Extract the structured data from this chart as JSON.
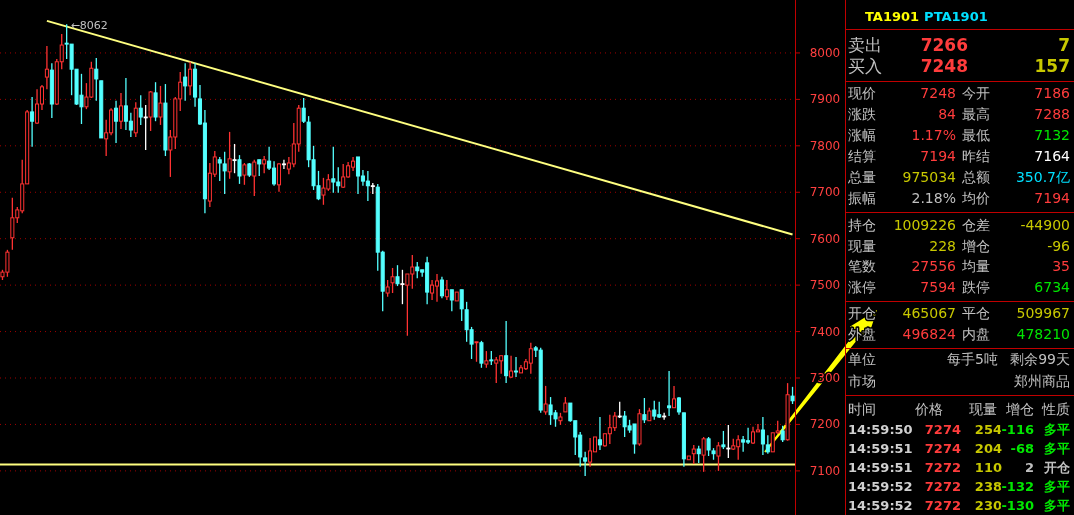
{
  "chart_data": [
    {
      "type": "candlestick",
      "ylim": [
        7005,
        8114
      ],
      "yticks": [
        7100,
        7200,
        7300,
        7400,
        7500,
        7600,
        7700,
        7800,
        7900,
        8000
      ],
      "grid": "y",
      "tick_labels": "y",
      "categories": [
        null,
        null,
        null,
        null,
        null,
        null,
        null,
        null,
        null,
        null,
        null,
        null,
        null,
        null,
        null,
        null,
        null,
        null,
        null,
        null,
        null,
        null,
        null,
        null,
        null,
        null,
        null,
        null,
        null,
        null,
        null,
        null,
        null,
        null,
        null,
        null,
        null,
        null,
        null,
        null,
        null,
        null,
        null,
        null,
        null,
        null,
        null,
        null,
        null,
        null,
        null,
        null,
        null,
        null,
        null,
        null,
        null,
        null,
        null,
        null,
        null,
        null,
        null,
        null,
        null,
        null,
        null,
        null,
        null,
        null,
        null,
        null,
        null,
        null,
        null,
        null,
        null,
        null,
        null,
        null,
        null,
        null,
        null,
        null,
        null,
        null,
        null,
        null,
        null,
        null,
        null,
        null,
        null,
        null,
        null,
        null,
        null,
        null,
        null,
        null,
        null,
        null,
        null,
        null,
        null,
        null,
        null,
        null,
        null,
        null,
        null,
        null,
        null,
        null,
        null,
        null,
        null,
        null,
        null,
        null,
        null,
        null,
        null,
        null,
        null,
        null,
        null,
        null,
        null,
        null,
        null,
        null,
        null,
        null,
        null,
        null,
        null,
        null,
        null,
        null,
        null,
        null,
        null,
        null,
        null,
        null,
        null,
        null,
        null,
        null,
        null,
        null,
        null,
        null,
        null,
        null,
        null,
        null,
        null,
        null,
        null
      ],
      "ohlc": [
        [
          7518,
          7533,
          7511,
          7528
        ],
        [
          7528,
          7576,
          7518,
          7571
        ],
        [
          7602,
          7688,
          7576,
          7645
        ],
        [
          7645,
          7668,
          7634,
          7662
        ],
        [
          7660,
          7770,
          7655,
          7718
        ],
        [
          7718,
          7877,
          7718,
          7873
        ],
        [
          7873,
          7905,
          7798,
          7853
        ],
        [
          7849,
          7922,
          7847,
          7890
        ],
        [
          7890,
          7931,
          7877,
          7927
        ],
        [
          7948,
          8015,
          7922,
          7965
        ],
        [
          7963,
          7978,
          7860,
          7890
        ],
        [
          7890,
          7987,
          7888,
          7981
        ],
        [
          7981,
          8041,
          7965,
          8017
        ],
        [
          8021,
          8062,
          7987,
          8019
        ],
        [
          8019,
          8019,
          7909,
          7965
        ],
        [
          7965,
          7965,
          7888,
          7890
        ],
        [
          7909,
          7955,
          7847,
          7884
        ],
        [
          7884,
          7935,
          7879,
          7905
        ],
        [
          7905,
          7981,
          7903,
          7967
        ],
        [
          7965,
          7989,
          7897,
          7944
        ],
        [
          7940,
          7940,
          7817,
          7817
        ],
        [
          7815,
          7856,
          7778,
          7828
        ],
        [
          7828,
          7881,
          7823,
          7877
        ],
        [
          7881,
          7897,
          7806,
          7853
        ],
        [
          7853,
          7914,
          7836,
          7886
        ],
        [
          7886,
          7946,
          7834,
          7853
        ],
        [
          7853,
          7871,
          7819,
          7834
        ],
        [
          7828,
          7894,
          7819,
          7881
        ],
        [
          7881,
          7909,
          7845,
          7862
        ],
        [
          7862,
          7888,
          7791,
          7862
        ],
        [
          7862,
          7918,
          7832,
          7916
        ],
        [
          7914,
          7937,
          7853,
          7862
        ],
        [
          7862,
          7929,
          7845,
          7892
        ],
        [
          7892,
          7933,
          7778,
          7791
        ],
        [
          7791,
          7834,
          7733,
          7819
        ],
        [
          7819,
          7905,
          7793,
          7901
        ],
        [
          7901,
          7959,
          7875,
          7937
        ],
        [
          7948,
          7978,
          7897,
          7929
        ],
        [
          7929,
          7981,
          7909,
          7965
        ],
        [
          7965,
          7978,
          7884,
          7905
        ],
        [
          7901,
          7931,
          7845,
          7847
        ],
        [
          7849,
          7877,
          7655,
          7686
        ],
        [
          7681,
          7763,
          7668,
          7741
        ],
        [
          7739,
          7789,
          7733,
          7776
        ],
        [
          7770,
          7776,
          7724,
          7763
        ],
        [
          7761,
          7787,
          7696,
          7746
        ],
        [
          7744,
          7830,
          7729,
          7772
        ],
        [
          7770,
          7804,
          7741,
          7770
        ],
        [
          7770,
          7780,
          7718,
          7735
        ],
        [
          7737,
          7763,
          7716,
          7759
        ],
        [
          7761,
          7763,
          7733,
          7737
        ],
        [
          7735,
          7770,
          7692,
          7765
        ],
        [
          7770,
          7770,
          7735,
          7761
        ],
        [
          7761,
          7778,
          7741,
          7770
        ],
        [
          7767,
          7798,
          7748,
          7752
        ],
        [
          7752,
          7767,
          7714,
          7718
        ],
        [
          7716,
          7763,
          7701,
          7761
        ],
        [
          7761,
          7770,
          7750,
          7761
        ],
        [
          7750,
          7776,
          7739,
          7763
        ],
        [
          7761,
          7849,
          7754,
          7804
        ],
        [
          7804,
          7888,
          7787,
          7881
        ],
        [
          7881,
          7903,
          7849,
          7853
        ],
        [
          7851,
          7864,
          7754,
          7770
        ],
        [
          7770,
          7800,
          7705,
          7714
        ],
        [
          7714,
          7746,
          7683,
          7686
        ],
        [
          7694,
          7731,
          7673,
          7709
        ],
        [
          7707,
          7739,
          7703,
          7727
        ],
        [
          7729,
          7798,
          7699,
          7722
        ],
        [
          7722,
          7754,
          7699,
          7714
        ],
        [
          7711,
          7761,
          7709,
          7733
        ],
        [
          7733,
          7765,
          7731,
          7757
        ],
        [
          7754,
          7776,
          7746,
          7767
        ],
        [
          7776,
          7776,
          7696,
          7735
        ],
        [
          7735,
          7748,
          7714,
          7724
        ],
        [
          7724,
          7746,
          7681,
          7714
        ],
        [
          7714,
          7720,
          7696,
          7714
        ],
        [
          7711,
          7718,
          7531,
          7571
        ],
        [
          7571,
          7574,
          7444,
          7487
        ],
        [
          7483,
          7511,
          7475,
          7496
        ],
        [
          7505,
          7537,
          7483,
          7518
        ],
        [
          7518,
          7543,
          7498,
          7503
        ],
        [
          7503,
          7533,
          7459,
          7503
        ],
        [
          7500,
          7524,
          7391,
          7524
        ],
        [
          7524,
          7565,
          7492,
          7539
        ],
        [
          7539,
          7550,
          7515,
          7531
        ],
        [
          7533,
          7533,
          7518,
          7528
        ],
        [
          7548,
          7561,
          7459,
          7485
        ],
        [
          7483,
          7511,
          7468,
          7500
        ],
        [
          7498,
          7524,
          7464,
          7509
        ],
        [
          7511,
          7518,
          7472,
          7477
        ],
        [
          7475,
          7511,
          7468,
          7490
        ],
        [
          7490,
          7490,
          7444,
          7468
        ],
        [
          7466,
          7485,
          7466,
          7485
        ],
        [
          7490,
          7490,
          7423,
          7449
        ],
        [
          7447,
          7464,
          7378,
          7404
        ],
        [
          7404,
          7410,
          7341,
          7373
        ],
        [
          7376,
          7378,
          7335,
          7378
        ],
        [
          7376,
          7380,
          7322,
          7332
        ],
        [
          7330,
          7358,
          7322,
          7337
        ],
        [
          7339,
          7358,
          7328,
          7337
        ],
        [
          7332,
          7345,
          7289,
          7339
        ],
        [
          7337,
          7348,
          7309,
          7348
        ],
        [
          7348,
          7423,
          7289,
          7305
        ],
        [
          7302,
          7348,
          7300,
          7315
        ],
        [
          7315,
          7345,
          7302,
          7313
        ],
        [
          7311,
          7328,
          7311,
          7322
        ],
        [
          7320,
          7341,
          7317,
          7335
        ],
        [
          7332,
          7376,
          7309,
          7363
        ],
        [
          7365,
          7369,
          7345,
          7360
        ],
        [
          7360,
          7365,
          7225,
          7231
        ],
        [
          7227,
          7283,
          7221,
          7244
        ],
        [
          7242,
          7259,
          7199,
          7221
        ],
        [
          7225,
          7231,
          7195,
          7212
        ],
        [
          7208,
          7225,
          7199,
          7216
        ],
        [
          7227,
          7259,
          7227,
          7246
        ],
        [
          7246,
          7246,
          7206,
          7208
        ],
        [
          7208,
          7208,
          7134,
          7173
        ],
        [
          7177,
          7184,
          7109,
          7130
        ],
        [
          7128,
          7141,
          7089,
          7121
        ],
        [
          7119,
          7171,
          7109,
          7143
        ],
        [
          7141,
          7173,
          7141,
          7173
        ],
        [
          7167,
          7216,
          7145,
          7156
        ],
        [
          7154,
          7180,
          7152,
          7180
        ],
        [
          7180,
          7221,
          7158,
          7193
        ],
        [
          7193,
          7227,
          7186,
          7218
        ],
        [
          7218,
          7249,
          7214,
          7218
        ],
        [
          7218,
          7229,
          7173,
          7195
        ],
        [
          7197,
          7210,
          7182,
          7188
        ],
        [
          7201,
          7201,
          7137,
          7158
        ],
        [
          7158,
          7233,
          7154,
          7223
        ],
        [
          7221,
          7257,
          7203,
          7210
        ],
        [
          7208,
          7236,
          7208,
          7229
        ],
        [
          7231,
          7251,
          7210,
          7218
        ],
        [
          7221,
          7249,
          7214,
          7216
        ],
        [
          7218,
          7225,
          7210,
          7218
        ],
        [
          7240,
          7315,
          7218,
          7236
        ],
        [
          7236,
          7283,
          7236,
          7255
        ],
        [
          7257,
          7259,
          7221,
          7227
        ],
        [
          7225,
          7225,
          7109,
          7126
        ],
        [
          7124,
          7132,
          7124,
          7132
        ],
        [
          7137,
          7156,
          7115,
          7147
        ],
        [
          7147,
          7154,
          7117,
          7137
        ],
        [
          7134,
          7173,
          7098,
          7169
        ],
        [
          7169,
          7173,
          7132,
          7145
        ],
        [
          7143,
          7149,
          7124,
          7137
        ],
        [
          7132,
          7162,
          7100,
          7154
        ],
        [
          7156,
          7186,
          7147,
          7152
        ],
        [
          7149,
          7199,
          7128,
          7149
        ],
        [
          7147,
          7169,
          7145,
          7154
        ],
        [
          7152,
          7177,
          7124,
          7167
        ],
        [
          7167,
          7175,
          7141,
          7162
        ],
        [
          7165,
          7193,
          7158,
          7162
        ],
        [
          7160,
          7195,
          7158,
          7184
        ],
        [
          7184,
          7201,
          7184,
          7188
        ],
        [
          7188,
          7216,
          7134,
          7158
        ],
        [
          7156,
          7177,
          7137,
          7141
        ],
        [
          7141,
          7182,
          7141,
          7182
        ],
        [
          7182,
          7208,
          7180,
          7186
        ],
        [
          7186,
          7197,
          7162,
          7167
        ],
        [
          7167,
          7289,
          7165,
          7264
        ],
        [
          7261,
          7281,
          7244,
          7251
        ]
      ],
      "series": [
        {
          "type": "line",
          "color": "#ffff80",
          "values": [
            null,
            null,
            null,
            null,
            null,
            null,
            null,
            null,
            null,
            8069,
            null,
            null,
            null,
            null,
            null,
            null,
            null,
            null,
            null,
            null,
            null,
            null,
            null,
            null,
            null,
            null,
            null,
            null,
            null,
            null,
            null,
            null,
            null,
            null,
            null,
            null,
            null,
            null,
            null,
            null,
            null,
            null,
            null,
            null,
            null,
            null,
            null,
            null,
            null,
            null,
            null,
            null,
            null,
            null,
            null,
            null,
            null,
            null,
            null,
            null,
            null,
            null,
            null,
            null,
            null,
            null,
            null,
            null,
            null,
            null,
            null,
            null,
            null,
            null,
            null,
            null,
            null,
            null,
            null,
            null,
            null,
            null,
            null,
            null,
            null,
            null,
            null,
            null,
            null,
            null,
            null,
            null,
            null,
            null,
            null,
            null,
            null,
            null,
            null,
            null,
            null,
            null,
            null,
            null,
            null,
            null,
            null,
            null,
            null,
            null,
            null,
            null,
            null,
            null,
            null,
            null,
            null,
            null,
            null,
            null,
            null,
            null,
            null,
            null,
            null,
            null,
            null,
            null,
            null,
            null,
            null,
            null,
            null,
            null,
            null,
            null,
            null,
            null,
            null,
            null,
            null,
            null,
            null,
            null,
            null,
            null,
            null,
            null,
            null,
            null,
            null,
            null,
            null,
            null,
            null,
            null,
            null,
            null,
            null,
            null,
            7609
          ]
        }
      ],
      "ref_lines": [
        {
          "axis": "y",
          "value": 7114,
          "color": "#ffff80"
        }
      ],
      "annotations": [
        "←8062"
      ]
    },
    {
      "type": "other",
      "annotations": [
        "TA1901",
        "PTA1901",
        "卖出",
        "7266",
        "7",
        "买入",
        "7248",
        "157",
        "现价",
        "7248",
        "今开",
        "7186",
        "涨跌",
        "84",
        "最高",
        "7288",
        "涨幅",
        "1.17%",
        "最低",
        "7132",
        "结算",
        "7194",
        "昨结",
        "7164",
        "总量",
        "975034",
        "总额",
        "350.7亿",
        "振幅",
        "2.18%",
        "均价",
        "7194",
        "持仓",
        "1009226",
        "仓差",
        "-44900",
        "现量",
        "228",
        "增仓",
        "-96",
        "笔数",
        "27556",
        "均量",
        "35",
        "涨停",
        "7594",
        "跌停",
        "6734",
        "开仓",
        "465067",
        "平仓",
        "509967",
        "外盘",
        "496824",
        "内盘",
        "478210",
        "单位",
        "每手5吨",
        "剩余99天",
        "市场",
        "郑州商品",
        "时间",
        "价格",
        "现量",
        "增仓",
        "性质",
        "14:59:50",
        "7274",
        "254",
        "-116",
        "多平",
        "14:59:51",
        "7274",
        "204",
        "-68",
        "多平",
        "14:59:51",
        "7272",
        "110",
        "2",
        "开仓",
        "14:59:52",
        "7272",
        "238",
        "-132",
        "多平",
        "14:59:52",
        "7272",
        "230",
        "-130",
        "多平"
      ],
      "colors": [
        "#ffff00",
        "#00e0ff",
        "#c0c0c0",
        "#ff3c3c",
        "#c8c800",
        "#c0c0c0",
        "#ff3c3c",
        "#c8c800",
        "#c0c0c0",
        "#ff3c3c",
        "#c0c0c0",
        "#ff3c3c",
        "#c0c0c0",
        "#ff3c3c",
        "#c0c0c0",
        "#ff3c3c",
        "#c0c0c0",
        "#ff3c3c",
        "#c0c0c0",
        "#00e600",
        "#c0c0c0",
        "#ff3c3c",
        "#c0c0c0",
        "#ffffff",
        "#c0c0c0",
        "#c8c800",
        "#c0c0c0",
        "#00e0ff",
        "#c0c0c0",
        "#c0c0c0",
        "#c0c0c0",
        "#ff3c3c",
        "#c0c0c0",
        "#c8c800",
        "#c0c0c0",
        "#c8c800",
        "#c0c0c0",
        "#c8c800",
        "#c0c0c0",
        "#c8c800",
        "#c0c0c0",
        "#ff3c3c",
        "#c0c0c0",
        "#ff3c3c",
        "#c0c0c0",
        "#ff3c3c",
        "#c0c0c0",
        "#00e600",
        "#c0c0c0",
        "#c8c800",
        "#c0c0c0",
        "#c8c800",
        "#c0c0c0",
        "#ff3c3c",
        "#c0c0c0",
        "#00e600",
        "#c0c0c0",
        "#c0c0c0",
        "#c0c0c0",
        "#c0c0c0",
        "#c0c0c0",
        "#c0c0c0",
        "#c0c0c0",
        "#c0c0c0",
        "#c0c0c0",
        "#c0c0c0",
        "#d0d0d0",
        "#ff3c3c",
        "#c8c800",
        "#00e600",
        "#00e600",
        "#d0d0d0",
        "#ff3c3c",
        "#c8c800",
        "#00e600",
        "#00e600",
        "#d0d0d0",
        "#ff3c3c",
        "#c8c800",
        "#c0c0c0",
        "#c0c0c0",
        "#d0d0d0",
        "#ff3c3c",
        "#c8c800",
        "#00e600",
        "#00e600",
        "#d0d0d0",
        "#ff3c3c",
        "#c8c800",
        "#00e600",
        "#00e600"
      ]
    }
  ]
}
